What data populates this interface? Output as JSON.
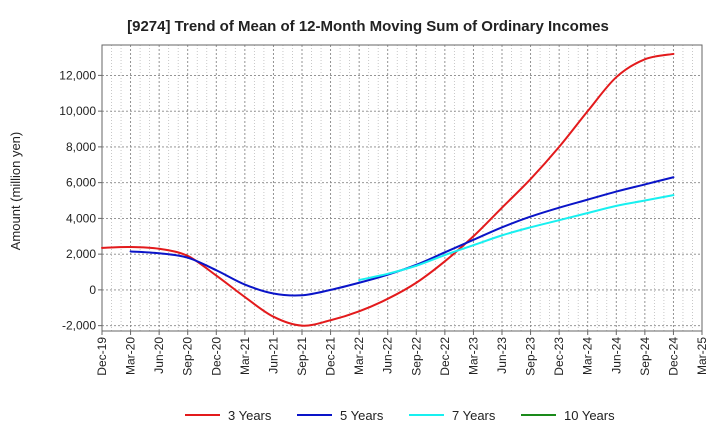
{
  "chart_data": {
    "type": "line",
    "title": "[9274]  Trend of Mean of 12-Month Moving Sum of Ordinary Incomes",
    "xlabel": "",
    "ylabel": "Amount (million yen)",
    "ylim": [
      -2300,
      13700
    ],
    "y_ticks": [
      -2000,
      0,
      2000,
      4000,
      6000,
      8000,
      10000,
      12000
    ],
    "y_tick_labels": [
      "-2,000",
      "0",
      "2,000",
      "4,000",
      "6,000",
      "8,000",
      "10,000",
      "12,000"
    ],
    "x_ticks": [
      "Dec-19",
      "Mar-20",
      "Jun-20",
      "Sep-20",
      "Dec-20",
      "Mar-21",
      "Jun-21",
      "Sep-21",
      "Dec-21",
      "Mar-22",
      "Jun-22",
      "Sep-22",
      "Dec-22",
      "Mar-23",
      "Jun-23",
      "Sep-23",
      "Dec-23",
      "Mar-24",
      "Jun-24",
      "Sep-24",
      "Dec-24",
      "Mar-25"
    ],
    "grid": true,
    "legend_position": "bottom",
    "series": [
      {
        "name": "3 Years",
        "color": "#e31a1c",
        "points": [
          [
            0,
            2350
          ],
          [
            1,
            2400
          ],
          [
            2,
            2300
          ],
          [
            3,
            1900
          ],
          [
            4,
            800
          ],
          [
            5,
            -400
          ],
          [
            6,
            -1500
          ],
          [
            7,
            -2000
          ],
          [
            8,
            -1700
          ],
          [
            9,
            -1200
          ],
          [
            10,
            -500
          ],
          [
            11,
            400
          ],
          [
            12,
            1600
          ],
          [
            13,
            3000
          ],
          [
            14,
            4600
          ],
          [
            15,
            6200
          ],
          [
            16,
            8000
          ],
          [
            17,
            10000
          ],
          [
            18,
            11900
          ],
          [
            19,
            12900
          ],
          [
            20,
            13200
          ]
        ]
      },
      {
        "name": "5 Years",
        "color": "#0a14c8",
        "points": [
          [
            1,
            2150
          ],
          [
            2,
            2050
          ],
          [
            3,
            1800
          ],
          [
            4,
            1100
          ],
          [
            5,
            300
          ],
          [
            6,
            -200
          ],
          [
            7,
            -300
          ],
          [
            8,
            0
          ],
          [
            9,
            400
          ],
          [
            10,
            850
          ],
          [
            11,
            1400
          ],
          [
            12,
            2100
          ],
          [
            13,
            2800
          ],
          [
            14,
            3500
          ],
          [
            15,
            4100
          ],
          [
            16,
            4600
          ],
          [
            17,
            5050
          ],
          [
            18,
            5500
          ],
          [
            19,
            5900
          ],
          [
            20,
            6300
          ]
        ]
      },
      {
        "name": "7 Years",
        "color": "#18f0f0",
        "points": [
          [
            9,
            550
          ],
          [
            10,
            900
          ],
          [
            11,
            1350
          ],
          [
            12,
            1950
          ],
          [
            13,
            2500
          ],
          [
            14,
            3050
          ],
          [
            15,
            3500
          ],
          [
            16,
            3900
          ],
          [
            17,
            4300
          ],
          [
            18,
            4700
          ],
          [
            19,
            5000
          ],
          [
            20,
            5300
          ]
        ]
      },
      {
        "name": "10 Years",
        "color": "#1a8a1a",
        "points": []
      }
    ]
  }
}
